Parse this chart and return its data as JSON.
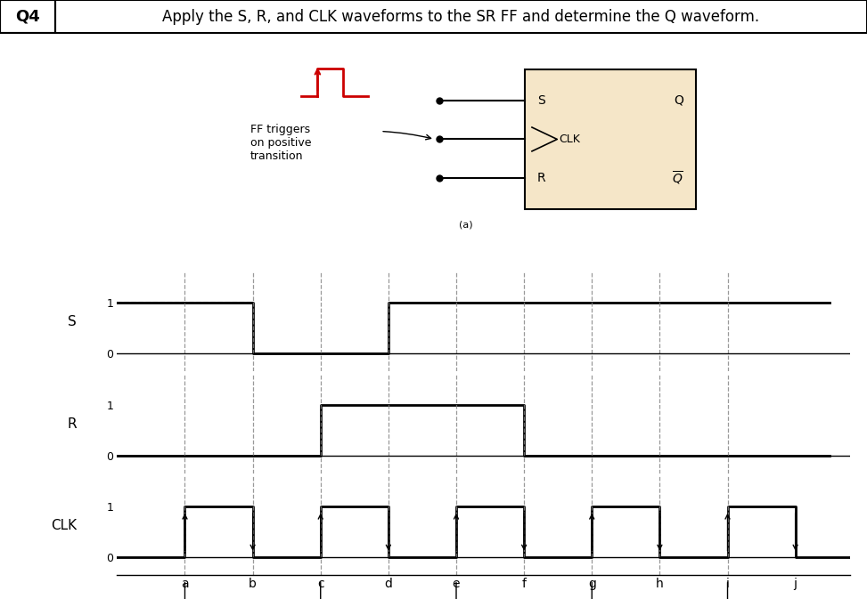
{
  "title": "Apply the S, R, and CLK waveforms to the SR FF and determine the Q waveform.",
  "q_label": "Q4",
  "background_color": "#ffffff",
  "tick_labels": [
    "a",
    "b",
    "c",
    "d",
    "e",
    "f",
    "g",
    "h",
    "i",
    "j"
  ],
  "S_t": [
    0,
    2,
    2,
    4,
    4,
    10.5
  ],
  "S_v": [
    1,
    1,
    0,
    0,
    1,
    1
  ],
  "R_t": [
    0,
    3,
    3,
    6,
    6,
    10.5
  ],
  "R_v": [
    0,
    0,
    1,
    1,
    0,
    0
  ],
  "dashed_vlines": [
    2,
    4,
    6,
    8
  ],
  "solid_vlines": [
    1,
    3,
    5,
    7,
    9
  ],
  "box_face_color": "#f5e6c8",
  "box_edge_color": "#000000",
  "mini_clk_color": "#cc0000",
  "clk_pulse_starts": [
    1,
    3,
    5,
    7,
    9
  ],
  "clk_pulse_ends": [
    2,
    4,
    6,
    8,
    10
  ],
  "xlim": [
    0,
    10.8
  ],
  "ylim_wave": [
    -0.35,
    1.6
  ]
}
